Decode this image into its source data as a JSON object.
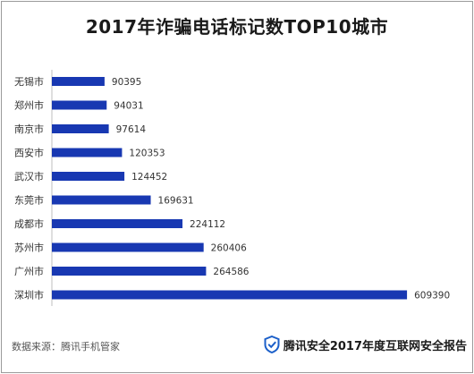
{
  "page": {
    "title": "2017年诈骗电话标记数TOP10城市",
    "source": "数据来源：腾讯手机管家",
    "brand": "腾讯安全2017年度互联网安全报告"
  },
  "colors": {
    "bar": "#1838b2",
    "brand_icon": "#1b5fc9"
  },
  "chart_data": {
    "type": "bar",
    "orientation": "horizontal",
    "title": "2017年诈骗电话标记数TOP10城市",
    "categories": [
      "无锡市",
      "郑州市",
      "南京市",
      "西安市",
      "武汉市",
      "东莞市",
      "成都市",
      "苏州市",
      "广州市",
      "深圳市"
    ],
    "values": [
      90395,
      94031,
      97614,
      120353,
      124452,
      169631,
      224112,
      260406,
      264586,
      609390
    ],
    "value_labels": [
      "90395",
      "94031",
      "97614",
      "120353",
      "124452",
      "169631",
      "224112",
      "260406",
      "264586",
      "609390"
    ],
    "xlim": [
      0,
      620000
    ],
    "grid": false,
    "legend": "none"
  }
}
